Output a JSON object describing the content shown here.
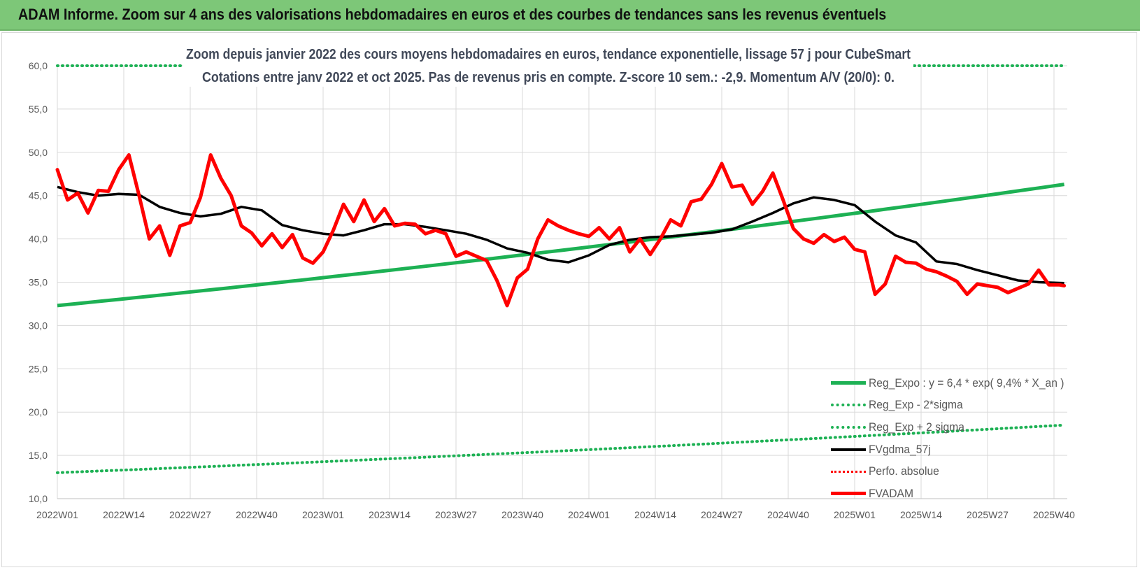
{
  "banner": {
    "title": "ADAM Informe. Zoom sur 4 ans des valorisations hebdomadaires en euros et des courbes de tendances sans les revenus éventuels"
  },
  "legend": {
    "items": [
      "Reg_Expo : y = 6,4 * exp( 9,4% *  X_an )",
      "Reg_Exp - 2*sigma",
      "Reg_Exp + 2 sigma",
      "FVgdma_57j",
      "Perfo. absolue",
      "FVADAM"
    ]
  },
  "chart_data": {
    "type": "line",
    "title": "Zoom depuis janvier 2022 des cours moyens hebdomadaires en euros, tendance exponentielle, lissage 57 j pour CubeSmart",
    "subtitle": "Cotations entre janv 2022 et oct 2025. Pas de revenus pris en compte. Z-score 10 sem.: -2,9.  Momentum A/V (20/0): 0.",
    "ylim": [
      10,
      60
    ],
    "ytick_labels": [
      "10,0",
      "15,0",
      "20,0",
      "25,0",
      "30,0",
      "35,0",
      "40,0",
      "45,0",
      "50,0",
      "55,0",
      "60,0"
    ],
    "x_ticks": [
      "2022W01",
      "2022W14",
      "2022W27",
      "2022W40",
      "2023W01",
      "2023W14",
      "2023W27",
      "2023W40",
      "2024W01",
      "2024W14",
      "2024W27",
      "2024W40",
      "2025W01",
      "2025W14",
      "2025W27",
      "2025W40"
    ],
    "weeks": 198,
    "grid": true,
    "legend_position": "bottom-right",
    "colors": {
      "trend": "#1db154",
      "smooth": "#000000",
      "price": "#ff0000",
      "perf": "#ff0000",
      "grid": "#d9d9d9"
    },
    "series": [
      {
        "name": "Reg_Expo : y = 6,4 * exp( 9,4% *  X_an )",
        "style": "solid",
        "x": [
          0,
          197
        ],
        "values": [
          32.3,
          46.3
        ]
      },
      {
        "name": "Reg_Exp - 2*sigma",
        "style": "dotted",
        "x": [
          0,
          197
        ],
        "values": [
          13.0,
          18.5
        ]
      },
      {
        "name": "Reg_Exp + 2 sigma",
        "style": "dotted",
        "x": [
          0,
          197
        ],
        "values": [
          60.0,
          60.0
        ]
      },
      {
        "name": "FVgdma_57j",
        "style": "solid",
        "x": [
          0,
          4,
          8,
          12,
          16,
          20,
          24,
          28,
          32,
          36,
          40,
          44,
          48,
          52,
          56,
          60,
          64,
          68,
          72,
          76,
          80,
          84,
          88,
          92,
          96,
          100,
          104,
          108,
          112,
          116,
          120,
          124,
          128,
          132,
          136,
          140,
          144,
          148,
          152,
          156,
          160,
          164,
          168,
          172,
          176,
          180,
          184,
          188,
          192,
          197
        ],
        "values": [
          46.0,
          45.4,
          45.0,
          45.2,
          45.1,
          43.7,
          43.0,
          42.6,
          42.9,
          43.7,
          43.3,
          41.6,
          41.0,
          40.6,
          40.4,
          41.0,
          41.7,
          41.7,
          41.4,
          41.0,
          40.6,
          39.9,
          38.9,
          38.4,
          37.6,
          37.3,
          38.1,
          39.3,
          39.9,
          40.2,
          40.3,
          40.5,
          40.7,
          41.1,
          42.0,
          43.0,
          44.1,
          44.8,
          44.5,
          43.9,
          42.0,
          40.4,
          39.6,
          37.4,
          37.1,
          36.4,
          35.8,
          35.2,
          35.0,
          34.9
        ]
      },
      {
        "name": "Perfo. absolue",
        "style": "dotted",
        "x": [],
        "values": []
      },
      {
        "name": "FVADAM",
        "style": "solid",
        "x": [
          0,
          2,
          4,
          6,
          8,
          10,
          12,
          14,
          16,
          18,
          20,
          22,
          24,
          26,
          28,
          30,
          32,
          34,
          36,
          38,
          40,
          42,
          44,
          46,
          48,
          50,
          52,
          54,
          56,
          58,
          60,
          62,
          64,
          66,
          68,
          70,
          72,
          74,
          76,
          78,
          80,
          82,
          84,
          86,
          88,
          90,
          92,
          94,
          96,
          98,
          100,
          102,
          104,
          106,
          108,
          110,
          112,
          114,
          116,
          118,
          120,
          122,
          124,
          126,
          128,
          130,
          132,
          134,
          136,
          138,
          140,
          142,
          144,
          146,
          148,
          150,
          152,
          154,
          156,
          158,
          160,
          162,
          164,
          166,
          168,
          170,
          172,
          174,
          176,
          178,
          180,
          182,
          184,
          186,
          188,
          190,
          192,
          194,
          196,
          197
        ],
        "values": [
          48.0,
          44.5,
          45.3,
          43.0,
          45.6,
          45.5,
          48.0,
          49.7,
          45.0,
          40.0,
          41.5,
          38.1,
          41.5,
          41.9,
          44.8,
          49.7,
          47.0,
          45.0,
          41.5,
          40.7,
          39.2,
          40.6,
          39.0,
          40.5,
          37.8,
          37.2,
          38.5,
          41.0,
          44.0,
          42.0,
          44.5,
          42.0,
          43.5,
          41.5,
          41.8,
          41.7,
          40.6,
          41.0,
          40.6,
          38.0,
          38.5,
          38.0,
          37.5,
          35.2,
          32.3,
          35.5,
          36.5,
          40.0,
          42.2,
          41.5,
          41.0,
          40.6,
          40.3,
          41.3,
          40.0,
          41.3,
          38.5,
          40.0,
          38.2,
          40.0,
          42.2,
          41.5,
          44.3,
          44.6,
          46.3,
          48.7,
          46.0,
          46.2,
          44.0,
          45.5,
          47.6,
          44.5,
          41.2,
          40.0,
          39.5,
          40.5,
          39.7,
          40.2,
          38.8,
          38.5,
          33.6,
          34.8,
          38.0,
          37.3,
          37.2,
          36.5,
          36.2,
          35.7,
          35.1,
          33.6,
          34.8,
          34.6,
          34.4,
          33.8,
          34.3,
          34.8,
          36.4,
          34.7,
          34.7,
          34.6
        ]
      }
    ]
  }
}
